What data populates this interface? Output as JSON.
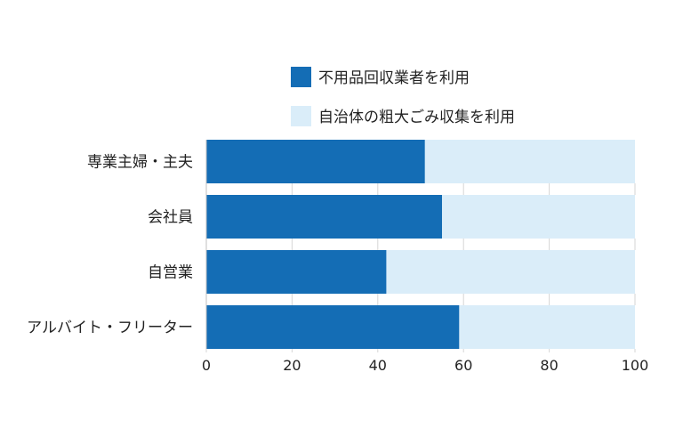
{
  "chart_data": {
    "type": "bar",
    "orientation": "horizontal",
    "stacked": true,
    "categories": [
      "専業主婦・主夫",
      "会社員",
      "自営業",
      "アルバイト・フリーター"
    ],
    "series": [
      {
        "name": "不用品回収業者を利用",
        "values": [
          51,
          55,
          42,
          59
        ],
        "color": "#146db5"
      },
      {
        "name": "自治体の粗大ごみ収集を利用",
        "values": [
          49,
          45,
          58,
          41
        ],
        "color": "#daedf9"
      }
    ],
    "xlim": [
      0,
      100
    ],
    "xticks": [
      0,
      20,
      40,
      60,
      80,
      100
    ],
    "grid": true,
    "legend_position": "top-right"
  }
}
